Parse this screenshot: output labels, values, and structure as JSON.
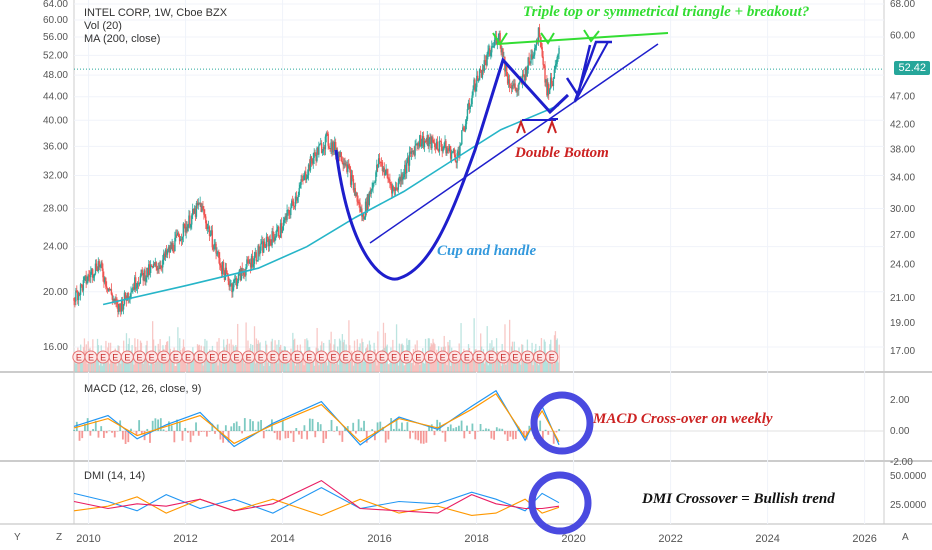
{
  "header": {
    "title": "INTEL CORP, 1W, Cboe BZX",
    "vol_label": "Vol (20)",
    "ma_label": "MA (200, close)",
    "last_price": "52.42"
  },
  "annotations": {
    "triple_top": "Triple top or symmetrical triangle + breakout?",
    "double_bottom": "Double Bottom",
    "cup_handle": "Cup and handle",
    "macd_cross": "MACD Cross-over on weekly",
    "dmi_cross": "DMI Crossover = Bullish trend"
  },
  "colors": {
    "up": "#26a69a",
    "down": "#ef5350",
    "ma": "#26b5c8",
    "green_ann": "#33dd33",
    "blue_ann": "#1e1ecc",
    "red_ann": "#cc2222",
    "cyan_ann": "#3399dd",
    "circle": "#4a4ae0",
    "macd_line": "#2196f3",
    "signal_line": "#ff9800",
    "dmi_plus": "#2196f3",
    "dmi_minus": "#ff9800",
    "adx": "#e91e63"
  },
  "corner": {
    "y": "Y",
    "z": "Z",
    "a": "A"
  },
  "chart_data": [
    {
      "type": "candlestick",
      "title": "INTEL CORP, 1W, Cboe BZX",
      "x_label_ticks": [
        "2010",
        "2012",
        "2014",
        "2016",
        "2018",
        "2020",
        "2022",
        "2024",
        "2026"
      ],
      "x_range_years": [
        2009.7,
        2026.4
      ],
      "left_axis": {
        "scale": "log",
        "ticks": [
          "16.00",
          "20.00",
          "24.00",
          "28.00",
          "32.00",
          "36.00",
          "40.00",
          "44.00",
          "48.00",
          "52.00",
          "56.00",
          "60.00",
          "64.00"
        ]
      },
      "right_axis": {
        "scale": "log",
        "ticks": [
          "17.00",
          "19.00",
          "21.00",
          "24.00",
          "27.00",
          "30.00",
          "34.00",
          "38.00",
          "42.00",
          "47.00",
          "52.42",
          "60.00",
          "68.00"
        ]
      },
      "price_path": [
        {
          "year": 2009.7,
          "close": 19.5
        },
        {
          "year": 2010.2,
          "close": 22.5
        },
        {
          "year": 2010.6,
          "close": 18.6
        },
        {
          "year": 2011.0,
          "close": 21.0
        },
        {
          "year": 2011.5,
          "close": 22.5
        },
        {
          "year": 2012.0,
          "close": 26.0
        },
        {
          "year": 2012.3,
          "close": 28.5
        },
        {
          "year": 2012.75,
          "close": 22.0
        },
        {
          "year": 2012.95,
          "close": 20.5
        },
        {
          "year": 2013.5,
          "close": 23.5
        },
        {
          "year": 2014.0,
          "close": 26.0
        },
        {
          "year": 2014.6,
          "close": 34.0
        },
        {
          "year": 2014.9,
          "close": 37.0
        },
        {
          "year": 2015.3,
          "close": 34.0
        },
        {
          "year": 2015.65,
          "close": 27.0
        },
        {
          "year": 2016.0,
          "close": 34.0
        },
        {
          "year": 2016.3,
          "close": 30.0
        },
        {
          "year": 2016.8,
          "close": 37.0
        },
        {
          "year": 2017.3,
          "close": 36.0
        },
        {
          "year": 2017.6,
          "close": 34.5
        },
        {
          "year": 2017.95,
          "close": 46.0
        },
        {
          "year": 2018.3,
          "close": 53.0
        },
        {
          "year": 2018.45,
          "close": 57.0
        },
        {
          "year": 2018.65,
          "close": 47.0
        },
        {
          "year": 2018.85,
          "close": 45.0
        },
        {
          "year": 2019.1,
          "close": 51.0
        },
        {
          "year": 2019.3,
          "close": 57.5
        },
        {
          "year": 2019.45,
          "close": 45.0
        },
        {
          "year": 2019.6,
          "close": 48.0
        },
        {
          "year": 2019.7,
          "close": 52.42
        }
      ],
      "ma200_path": [
        {
          "year": 2010.3,
          "value": 19.0
        },
        {
          "year": 2012.0,
          "value": 20.5
        },
        {
          "year": 2013.5,
          "value": 22.0
        },
        {
          "year": 2014.5,
          "value": 24.0
        },
        {
          "year": 2015.5,
          "value": 27.0
        },
        {
          "year": 2016.5,
          "value": 30.0
        },
        {
          "year": 2017.5,
          "value": 34.0
        },
        {
          "year": 2018.5,
          "value": 38.5
        },
        {
          "year": 2019.7,
          "value": 42.5
        }
      ],
      "earnings_marker": "E"
    },
    {
      "type": "line",
      "title": "MACD (12, 26, close, 9)",
      "y_ticks": [
        "2.00",
        "0.00",
        "-2.00"
      ],
      "series": [
        {
          "name": "MACD",
          "values": [
            0.3,
            1.0,
            -0.5,
            0.4,
            1.2,
            -1.0,
            0.5,
            1.9,
            -0.9,
            0.9,
            0.1,
            1.6,
            2.6,
            -0.6,
            1.6,
            -0.9
          ]
        },
        {
          "name": "Signal",
          "values": [
            0.2,
            0.8,
            -0.3,
            0.3,
            1.0,
            -0.8,
            0.4,
            1.7,
            -0.7,
            0.8,
            0.2,
            1.4,
            2.4,
            -0.4,
            1.3,
            -0.7
          ]
        }
      ],
      "x_years": [
        2009.7,
        2010.4,
        2011.0,
        2011.6,
        2012.3,
        2013.0,
        2013.8,
        2014.8,
        2015.6,
        2016.4,
        2017.2,
        2017.9,
        2018.4,
        2019.0,
        2019.35,
        2019.7
      ]
    },
    {
      "type": "line",
      "title": "DMI (14, 14)",
      "y_ticks": [
        "50.0000",
        "25.0000"
      ],
      "series": [
        {
          "name": "+DI",
          "values": [
            35,
            28,
            20,
            34,
            22,
            30,
            18,
            40,
            22,
            28,
            26,
            36,
            30,
            20,
            35,
            27
          ]
        },
        {
          "name": "-DI",
          "values": [
            20,
            24,
            32,
            18,
            30,
            20,
            30,
            16,
            30,
            18,
            24,
            16,
            18,
            30,
            18,
            23
          ]
        },
        {
          "name": "ADX",
          "values": [
            28,
            22,
            26,
            24,
            30,
            20,
            26,
            46,
            22,
            20,
            18,
            34,
            26,
            22,
            22,
            24
          ]
        }
      ],
      "x_years": [
        2009.7,
        2010.4,
        2011.0,
        2011.6,
        2012.3,
        2013.0,
        2013.8,
        2014.8,
        2015.6,
        2016.4,
        2017.2,
        2017.9,
        2018.4,
        2019.0,
        2019.35,
        2019.7
      ]
    }
  ]
}
